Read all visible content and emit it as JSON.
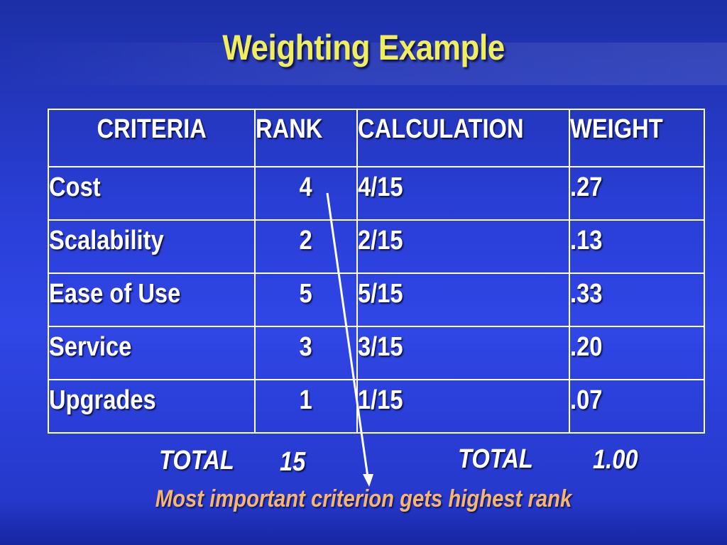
{
  "slide": {
    "title": "Weighting Example",
    "table": {
      "headers": [
        "CRITERIA",
        "RANK",
        "CALCULATION",
        "WEIGHT"
      ],
      "rows": [
        {
          "criterion": "Cost",
          "rank": "4",
          "calculation": "4/15",
          "weight": ".27"
        },
        {
          "criterion": "Scalability",
          "rank": "2",
          "calculation": "2/15",
          "weight": ".13"
        },
        {
          "criterion": "Ease of Use",
          "rank": "5",
          "calculation": "5/15",
          "weight": ".33"
        },
        {
          "criterion": "Service",
          "rank": "3",
          "calculation": "3/15",
          "weight": ".20"
        },
        {
          "criterion": "Upgrades",
          "rank": "1",
          "calculation": "1/15",
          "weight": ".07"
        }
      ]
    },
    "totals": {
      "rank_label": "TOTAL",
      "rank_value": "15",
      "weight_label": "TOTAL",
      "weight_value": "1.00"
    },
    "note": "Most important criterion gets highest rank"
  },
  "colors": {
    "background": "#2a3fd8",
    "title": "#f0ee5c",
    "text": "#ffffff",
    "note": "#f7b56e",
    "grid_lines": "#ffffff"
  }
}
